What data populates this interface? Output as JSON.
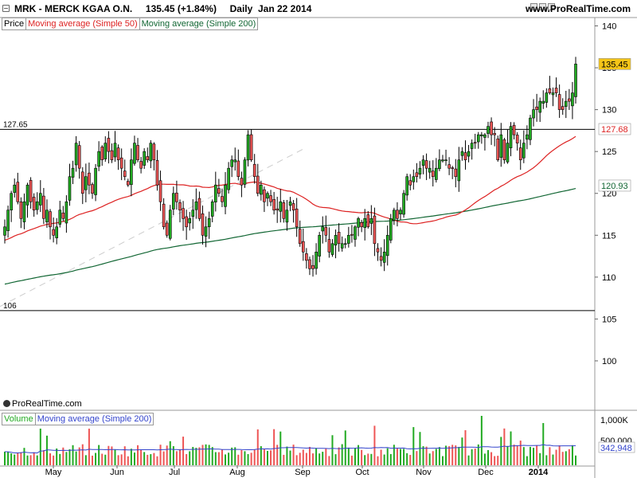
{
  "header": {
    "title": "MRK - MERCK KGAA O.N.",
    "last_change": "135.45 (+1.84%)",
    "period": "Daily",
    "date": "Jan 22 2014",
    "website": "www.ProRealTime.com"
  },
  "price_legend": {
    "price": "Price",
    "ma50": "Moving average (Simple 50)",
    "ma200": "Moving average (Simple 200)"
  },
  "volume_legend": {
    "volume": "Volume",
    "ma200": "Moving average (Simple 200)"
  },
  "copyright": "ProRealTime.com",
  "colors": {
    "up": "#22aa22",
    "down": "#ee5555",
    "ma50": "#dd2222",
    "ma200": "#116633",
    "vol_ma": "#3344cc",
    "last_price_bg": "#f5c518"
  },
  "chart_data": [
    {
      "type": "candlestick",
      "panel": "price",
      "y_ticks": [
        100,
        105,
        110,
        115,
        120,
        125,
        130,
        135,
        140
      ],
      "ylim": [
        96,
        141
      ],
      "x_ticks": [
        "May",
        "Jun",
        "Jul",
        "Aug",
        "Sep",
        "Oct",
        "Nov",
        "Dec",
        "2014"
      ],
      "horizontal_lines": [
        {
          "value": 127.65,
          "label": "127.65"
        },
        {
          "value": 106,
          "label": "106"
        }
      ],
      "badges": {
        "last_price": "135.45",
        "ma50_last": "127.68",
        "ma200_last": "120.93"
      },
      "close": [
        116,
        118,
        120,
        121,
        119,
        117,
        119,
        121,
        119,
        118,
        119,
        120,
        117,
        118,
        116,
        115,
        116,
        118,
        117,
        119,
        122,
        123,
        126,
        123,
        120,
        122,
        121,
        120,
        123,
        125,
        124,
        126,
        125,
        124,
        126,
        124,
        123,
        122,
        121,
        124,
        126,
        124,
        123,
        125,
        124,
        126,
        124,
        121,
        119,
        116,
        115,
        118,
        120,
        119,
        118,
        117,
        116,
        117,
        118,
        119,
        117,
        115,
        116,
        117,
        119,
        121,
        120,
        119,
        121,
        123,
        124,
        124,
        122,
        121,
        124,
        127,
        124,
        122,
        120,
        121,
        119,
        120,
        119,
        118,
        118,
        119,
        117,
        118,
        119,
        118,
        116,
        114,
        113,
        112,
        111,
        111,
        113,
        115,
        116,
        115,
        113,
        114,
        115,
        114,
        114,
        114,
        115,
        115,
        116,
        117,
        116,
        117,
        116,
        117,
        114,
        113,
        112,
        113,
        115,
        117,
        118,
        117,
        118,
        120,
        122,
        121,
        122,
        122,
        123,
        124,
        123,
        123,
        122,
        123,
        124,
        124,
        124,
        123,
        123,
        122,
        124,
        125,
        124,
        125,
        126,
        126,
        127,
        127,
        127,
        128,
        127,
        127,
        124,
        127,
        124,
        126,
        128,
        127,
        126,
        124,
        126,
        127,
        129,
        130,
        130,
        131,
        131,
        132,
        132,
        132,
        132,
        130,
        130,
        131,
        131,
        132,
        135.45
      ],
      "volume_unit": "thousand shares",
      "volume_axis_ticks": [
        "1,000K",
        "500,000"
      ],
      "volume_ma_last": "342,948"
    }
  ]
}
